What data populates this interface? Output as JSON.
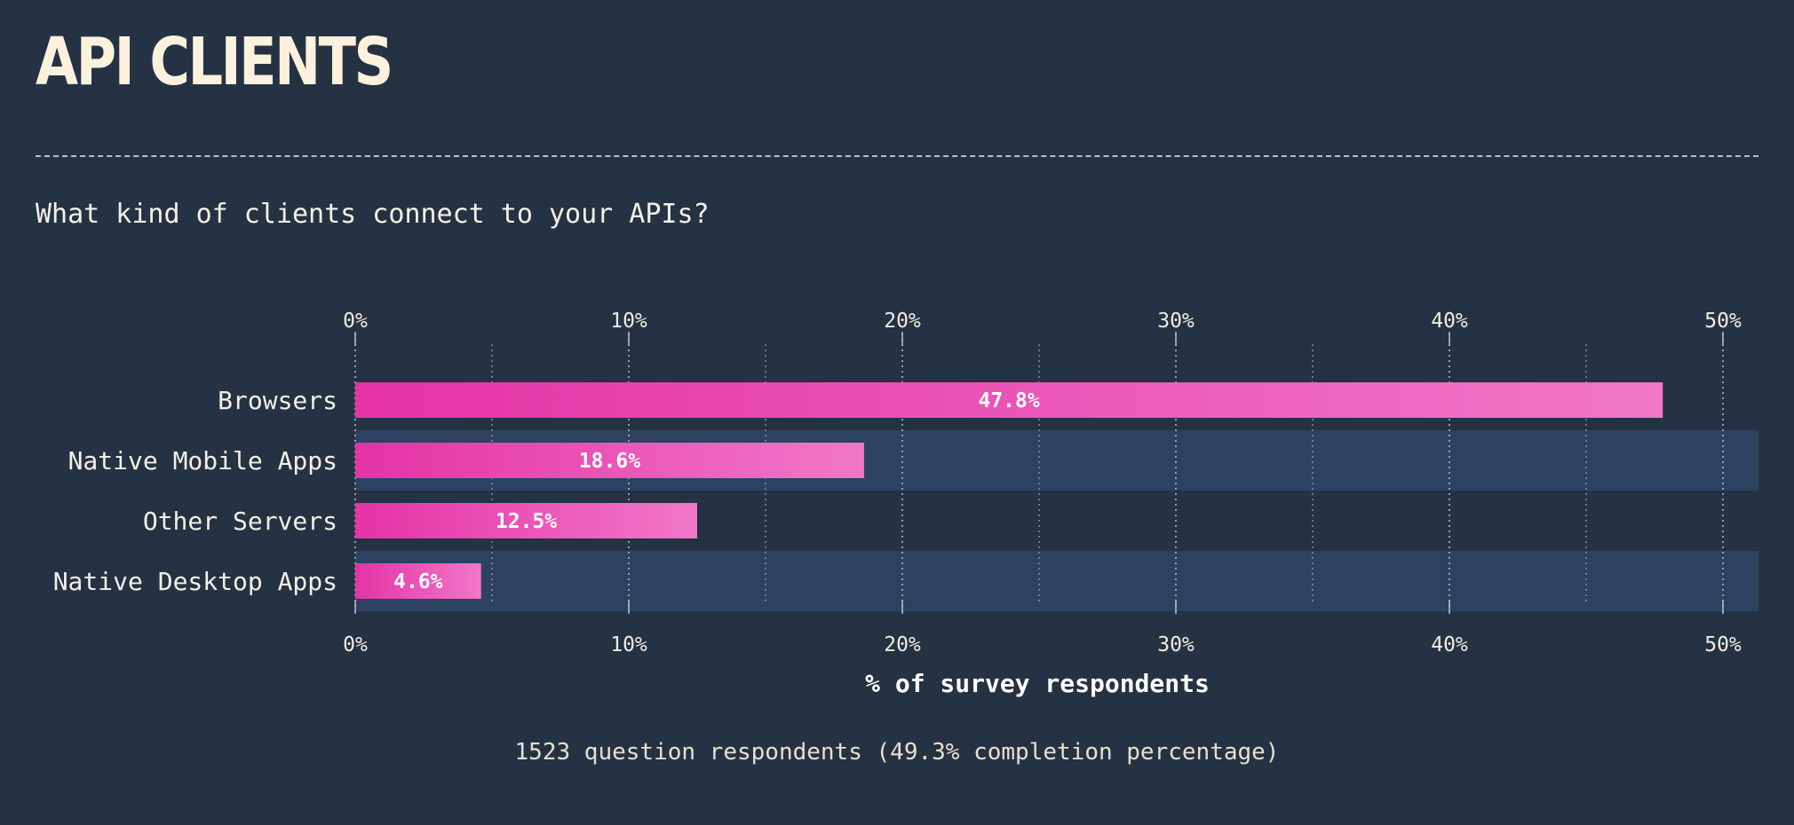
{
  "header": {
    "title": "API CLIENTS",
    "question": "What kind of clients connect to your APIs?"
  },
  "footer": {
    "note": "1523 question respondents (49.3% completion percentage)"
  },
  "colors": {
    "background": "#253243",
    "band": "#2d4261",
    "bar_start": "#e433a6",
    "bar_end": "#f277c9"
  },
  "chart_data": {
    "type": "bar",
    "orientation": "horizontal",
    "categories": [
      "Browsers",
      "Native Mobile Apps",
      "Other Servers",
      "Native Desktop Apps"
    ],
    "values": [
      47.8,
      18.6,
      12.5,
      4.6
    ],
    "value_labels": [
      "47.8%",
      "18.6%",
      "12.5%",
      "4.6%"
    ],
    "xlabel": "% of survey respondents",
    "xlim": [
      0,
      51.5
    ],
    "ticks": [
      0,
      10,
      20,
      30,
      40,
      50
    ],
    "tick_labels": [
      "0%",
      "10%",
      "20%",
      "30%",
      "40%",
      "50%"
    ],
    "minor_gridlines": [
      5,
      15,
      25,
      35,
      45
    ],
    "grid": true,
    "axis_position": "top and bottom"
  }
}
